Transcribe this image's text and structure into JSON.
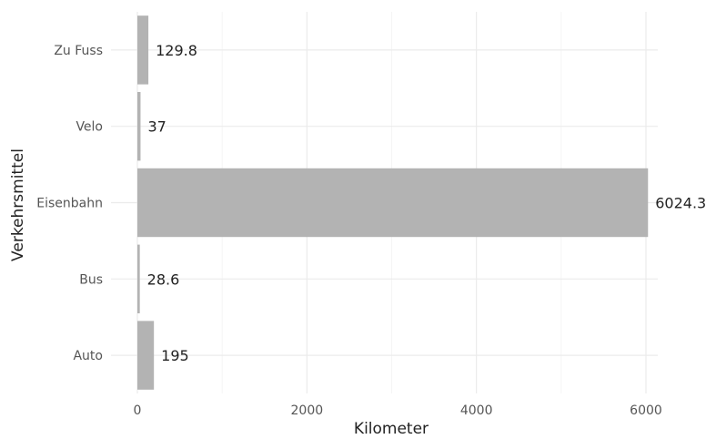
{
  "chart_data": {
    "type": "bar",
    "orientation": "horizontal",
    "categories": [
      "Auto",
      "Bus",
      "Eisenbahn",
      "Velo",
      "Zu Fuss"
    ],
    "values": [
      195,
      28.6,
      6024.3,
      37,
      129.8
    ],
    "value_labels": [
      "195",
      "28.6",
      "6024.3",
      "37",
      "129.8"
    ],
    "xlabel": "Kilometer",
    "ylabel": "Verkehrsmittel",
    "xlim": [
      0,
      6024.3
    ],
    "xticks": [
      0,
      2000,
      4000,
      6000
    ],
    "xtick_labels": [
      "0",
      "2000",
      "4000",
      "6000"
    ],
    "grid": true,
    "legend": "none",
    "bar_color": "#b3b3b3"
  }
}
